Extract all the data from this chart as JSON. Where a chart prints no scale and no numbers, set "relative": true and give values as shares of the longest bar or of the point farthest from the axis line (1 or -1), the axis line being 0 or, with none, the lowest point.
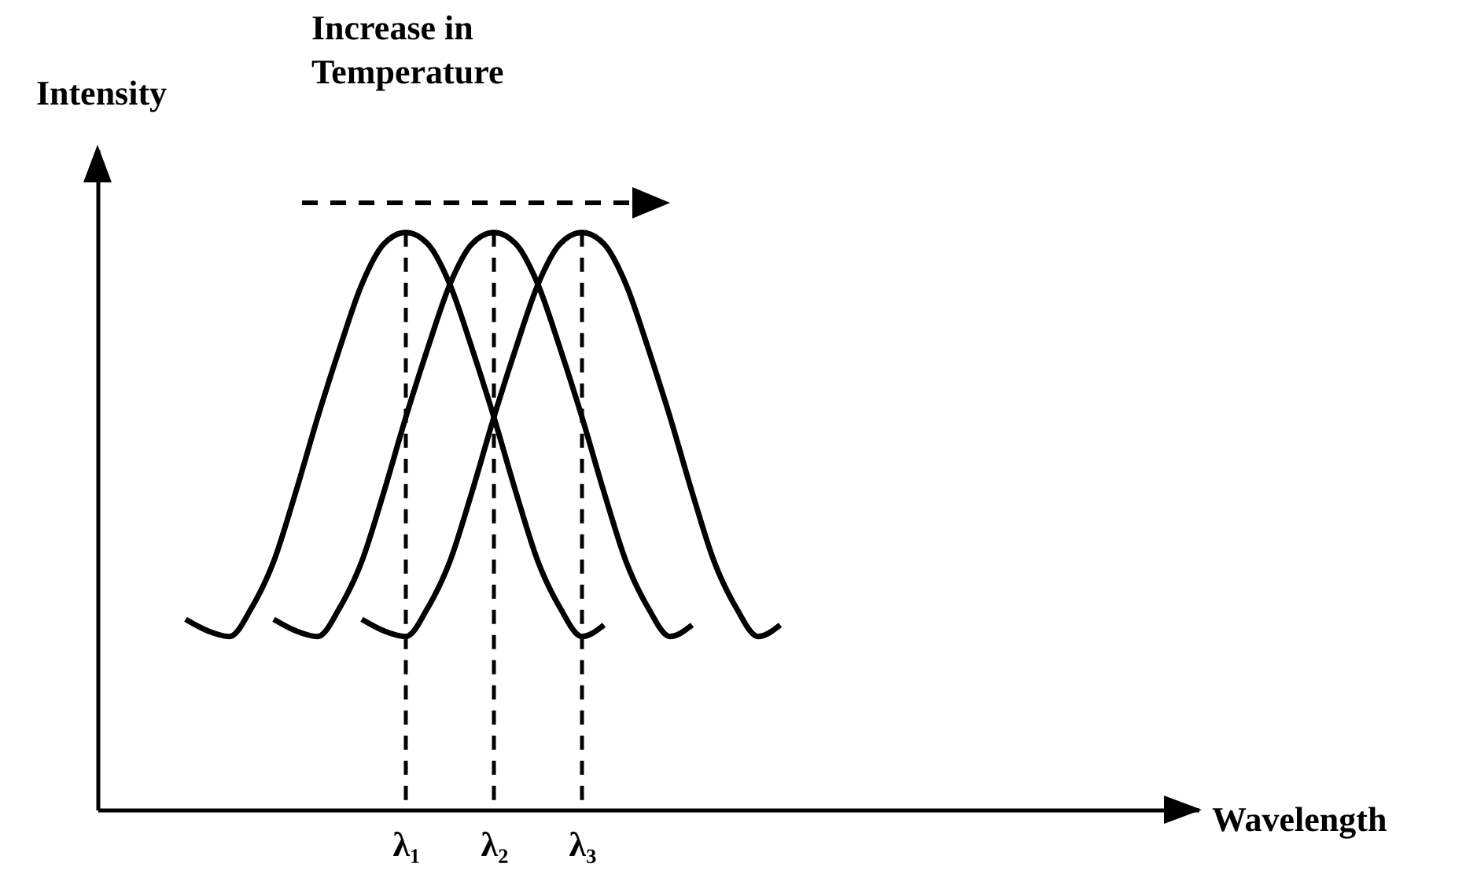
{
  "chart_data": {
    "type": "line",
    "relative": true,
    "xlabel": "Wavelength",
    "ylabel": "Intensity",
    "annotations": [
      "Increase in Temperature"
    ],
    "categories": [
      null,
      null,
      null,
      null,
      null,
      null,
      null,
      null,
      null,
      null,
      null,
      null,
      null,
      null,
      "λ₁",
      null,
      null,
      null,
      "λ₂",
      null,
      null,
      null,
      "λ₃",
      null,
      null,
      null,
      null,
      null,
      null,
      null,
      null,
      null,
      null,
      null,
      null,
      null,
      null,
      null,
      null,
      null,
      null,
      null,
      null,
      null,
      null,
      null,
      null,
      null,
      null,
      null,
      null
    ],
    "series": [
      {
        "color": "#000000",
        "values": [
          null,
          null,
          null,
          null,
          0.33,
          0.31,
          0.3,
          0.35,
          0.43,
          0.55,
          0.68,
          0.8,
          0.91,
          0.98,
          1.0,
          0.98,
          0.91,
          0.8,
          0.68,
          0.55,
          0.43,
          0.35,
          0.3,
          0.32,
          null,
          null,
          null,
          null,
          null,
          null,
          null,
          null,
          null,
          null,
          null,
          null,
          null,
          null,
          null,
          null,
          null,
          null,
          null,
          null,
          null,
          null,
          null,
          null,
          null,
          null,
          null
        ]
      },
      {
        "color": "#000000",
        "values": [
          null,
          null,
          null,
          null,
          null,
          null,
          null,
          null,
          0.33,
          0.31,
          0.3,
          0.35,
          0.43,
          0.55,
          0.68,
          0.8,
          0.91,
          0.98,
          1.0,
          0.98,
          0.91,
          0.8,
          0.68,
          0.55,
          0.43,
          0.35,
          0.3,
          0.32,
          null,
          null,
          null,
          null,
          null,
          null,
          null,
          null,
          null,
          null,
          null,
          null,
          null,
          null,
          null,
          null,
          null,
          null,
          null,
          null,
          null,
          null,
          null
        ]
      },
      {
        "color": "#000000",
        "values": [
          null,
          null,
          null,
          null,
          null,
          null,
          null,
          null,
          null,
          null,
          null,
          null,
          0.33,
          0.31,
          0.3,
          0.35,
          0.43,
          0.55,
          0.68,
          0.8,
          0.91,
          0.98,
          1.0,
          0.98,
          0.91,
          0.8,
          0.68,
          0.55,
          0.43,
          0.35,
          0.3,
          0.32,
          null,
          null,
          null,
          null,
          null,
          null,
          null,
          null,
          null,
          null,
          null,
          null,
          null,
          null,
          null,
          null,
          null,
          null,
          null
        ]
      }
    ],
    "ref_lines": [
      {
        "axis": "x",
        "value": "λ₁",
        "line_style": "dashed"
      },
      {
        "axis": "x",
        "value": "λ₂",
        "line_style": "dashed"
      },
      {
        "axis": "x",
        "value": "λ₃",
        "line_style": "dashed"
      }
    ]
  }
}
